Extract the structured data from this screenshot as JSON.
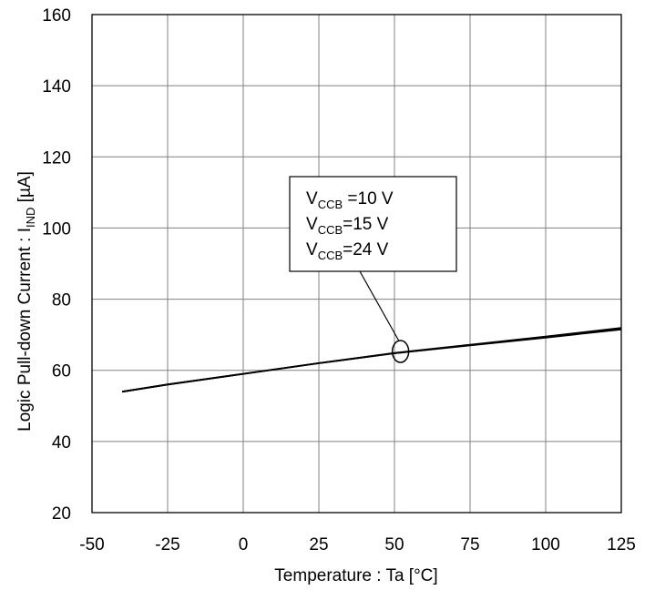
{
  "chart_data": {
    "type": "line",
    "title": "",
    "xlabel": "Temperature : Ta [°C]",
    "ylabel": {
      "main": "Logic Pull-down Current : I",
      "sub": "IND",
      "unit": " [µA]"
    },
    "xlim": [
      -50,
      125
    ],
    "ylim": [
      20,
      160
    ],
    "xticks": [
      -50,
      -25,
      0,
      25,
      50,
      75,
      100,
      125
    ],
    "yticks": [
      20,
      40,
      60,
      80,
      100,
      120,
      140,
      160
    ],
    "xtick_labels": [
      "-50",
      "-25",
      "0",
      "25",
      "50",
      "75",
      "100",
      "125"
    ],
    "ytick_labels": [
      "20",
      "40",
      "60",
      "80",
      "100",
      "120",
      "140",
      "160"
    ],
    "grid": true,
    "series": [
      {
        "name": "VCCB=10 V",
        "x": [
          -40,
          -25,
          0,
          25,
          50,
          75,
          100,
          125
        ],
        "y": [
          54.0,
          56.0,
          59.0,
          62.0,
          64.8,
          67.0,
          69.2,
          71.5
        ]
      },
      {
        "name": "VCCB=15 V",
        "x": [
          -40,
          -25,
          0,
          25,
          50,
          75,
          100,
          125
        ],
        "y": [
          54.0,
          56.0,
          59.0,
          62.0,
          64.8,
          67.1,
          69.4,
          71.7
        ]
      },
      {
        "name": "VCCB=24 V",
        "x": [
          -40,
          -25,
          0,
          25,
          50,
          75,
          100,
          125
        ],
        "y": [
          54.0,
          56.0,
          59.0,
          62.0,
          64.9,
          67.2,
          69.5,
          71.9
        ]
      }
    ],
    "annotation": {
      "lines": [
        {
          "main": "V",
          "sub": "CCB",
          "rest": " =10 V"
        },
        {
          "main": "V",
          "sub": "CCB",
          "rest": "=15 V"
        },
        {
          "main": "V",
          "sub": "CCB",
          "rest": "=24 V"
        }
      ],
      "target": {
        "x": 52,
        "y": 65.3
      }
    },
    "colors": {
      "line": "#000000",
      "grid": "#808080",
      "axis": "#000000"
    }
  }
}
